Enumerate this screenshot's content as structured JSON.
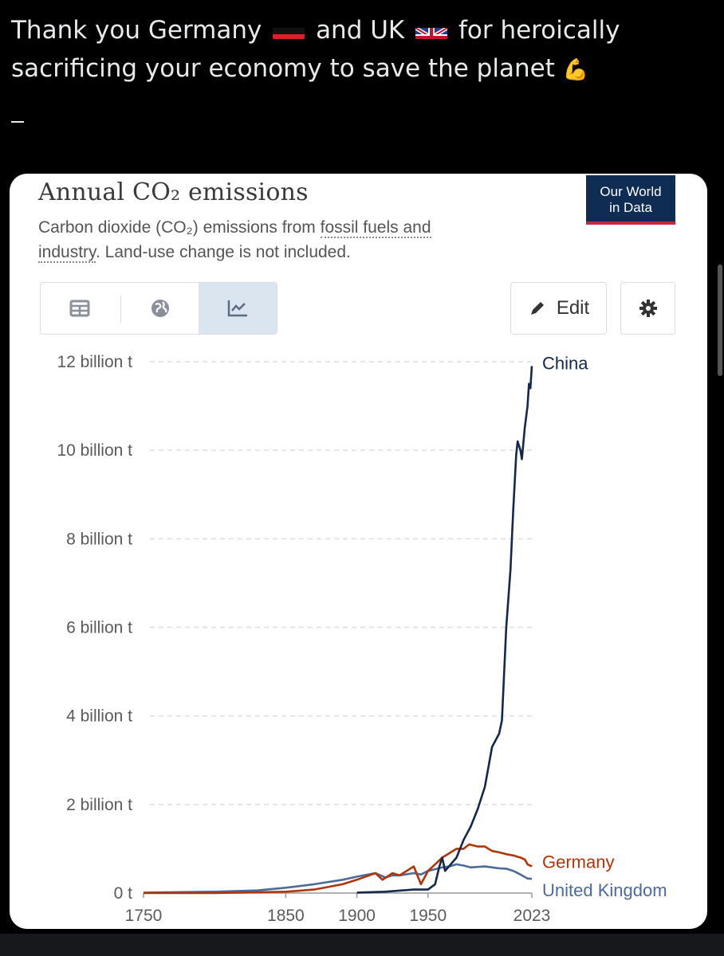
{
  "tweet": {
    "line1_a": "Thank you Germany",
    "line1_b": "and UK",
    "line1_c": "for heroically",
    "line2": "sacrificing your economy to save the planet",
    "flexed_biceps": "💪",
    "germany_flag_icon": "germany-flag",
    "uk_flag_icon": "uk-flag"
  },
  "card": {
    "title": "Annual CO₂ emissions",
    "subtitle_a": "Carbon dioxide (CO₂) emissions from ",
    "subtitle_link1": "fossil fuels and",
    "subtitle_link2": "industry",
    "subtitle_b": ". Land-use change is not included.",
    "logo_line1": "Our World",
    "logo_line2": "in Data",
    "logo_bg": "#0f2d52",
    "logo_accent": "#c4283a",
    "tabs": [
      {
        "icon": "table-icon",
        "active": false
      },
      {
        "icon": "globe-icon",
        "active": false
      },
      {
        "icon": "line-chart-icon",
        "active": true
      }
    ],
    "edit_label": "Edit",
    "settings_icon": "gear-icon"
  },
  "chart_data": {
    "type": "line",
    "title": "Annual CO₂ emissions",
    "ylim": [
      0,
      12
    ],
    "yunit": "billion t",
    "y_ticks": [
      "0 t",
      "2 billion t",
      "4 billion t",
      "6 billion t",
      "8 billion t",
      "10 billion t",
      "12 billion t"
    ],
    "x_ticks": [
      "1750",
      "1850",
      "1900",
      "1950",
      "2023"
    ],
    "grid": "horizontal dashed",
    "series": [
      {
        "name": "China",
        "color": "#13294b",
        "x": [
          1900,
          1920,
          1940,
          1950,
          1955,
          1958,
          1960,
          1962,
          1970,
          1975,
          1980,
          1985,
          1990,
          1995,
          2000,
          2002,
          2005,
          2008,
          2010,
          2012,
          2013,
          2015,
          2016,
          2018,
          2020,
          2021,
          2022,
          2023
        ],
        "y": [
          0.01,
          0.03,
          0.08,
          0.08,
          0.2,
          0.6,
          0.8,
          0.5,
          0.8,
          1.2,
          1.5,
          1.9,
          2.4,
          3.3,
          3.6,
          3.9,
          6.0,
          7.3,
          8.7,
          9.9,
          10.2,
          10.0,
          9.8,
          10.5,
          11.0,
          11.5,
          11.4,
          11.9
        ]
      },
      {
        "name": "Germany",
        "color": "#b13507",
        "x": [
          1750,
          1800,
          1850,
          1870,
          1890,
          1900,
          1913,
          1918,
          1925,
          1930,
          1935,
          1940,
          1945,
          1950,
          1955,
          1960,
          1965,
          1970,
          1975,
          1979,
          1985,
          1990,
          1995,
          2000,
          2005,
          2010,
          2015,
          2018,
          2020,
          2023
        ],
        "y": [
          0.0,
          0.0,
          0.03,
          0.08,
          0.2,
          0.3,
          0.45,
          0.3,
          0.45,
          0.4,
          0.5,
          0.6,
          0.2,
          0.5,
          0.65,
          0.8,
          0.9,
          1.0,
          1.0,
          1.1,
          1.05,
          1.05,
          0.95,
          0.92,
          0.88,
          0.85,
          0.8,
          0.76,
          0.65,
          0.6
        ]
      },
      {
        "name": "United Kingdom",
        "color": "#4c6a9c",
        "x": [
          1750,
          1800,
          1830,
          1850,
          1870,
          1890,
          1900,
          1913,
          1920,
          1925,
          1930,
          1940,
          1945,
          1950,
          1955,
          1960,
          1965,
          1970,
          1975,
          1980,
          1990,
          2000,
          2005,
          2010,
          2015,
          2020,
          2023
        ],
        "y": [
          0.01,
          0.03,
          0.06,
          0.12,
          0.2,
          0.3,
          0.37,
          0.45,
          0.35,
          0.4,
          0.4,
          0.45,
          0.42,
          0.5,
          0.54,
          0.58,
          0.6,
          0.65,
          0.62,
          0.58,
          0.6,
          0.56,
          0.55,
          0.5,
          0.42,
          0.33,
          0.32
        ]
      }
    ]
  }
}
